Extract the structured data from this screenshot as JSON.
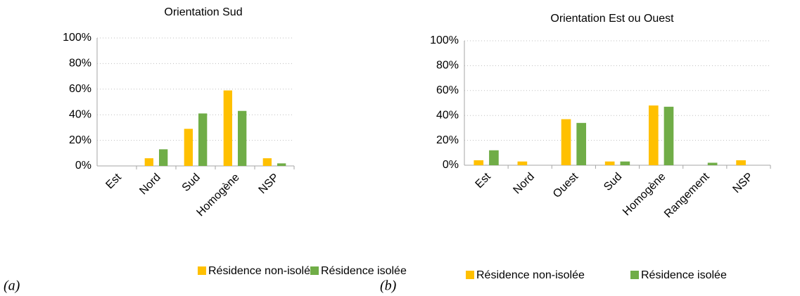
{
  "chart_data": [
    {
      "type": "bar",
      "title": "Orientation Sud",
      "label": "(a)",
      "categories": [
        "Est",
        "Nord",
        "Sud",
        "Homogène",
        "NSP"
      ],
      "series": [
        {
          "name": "Résidence non-isolée",
          "color": "#FFC000",
          "values": [
            0,
            6,
            29,
            59,
            6
          ]
        },
        {
          "name": "Résidence isolée",
          "color": "#70AD47",
          "values": [
            0,
            13,
            41,
            43,
            2
          ]
        }
      ],
      "ylim": [
        0,
        100
      ],
      "yticks": [
        {
          "value": 0,
          "label": "0%"
        },
        {
          "value": 20,
          "label": "20%"
        },
        {
          "value": 40,
          "label": "40%"
        },
        {
          "value": 60,
          "label": "60%"
        },
        {
          "value": 80,
          "label": "80%"
        },
        {
          "value": 100,
          "label": "100%"
        }
      ],
      "grid": true
    },
    {
      "type": "bar",
      "title": "Orientation Est ou Ouest",
      "label": "(b)",
      "categories": [
        "Est",
        "Nord",
        "Ouest",
        "Sud",
        "Homogène",
        "Rangement",
        "NSP"
      ],
      "series": [
        {
          "name": "Résidence non-isolée",
          "color": "#FFC000",
          "values": [
            4,
            3,
            37,
            3,
            48,
            0,
            4
          ]
        },
        {
          "name": "Résidence isolée",
          "color": "#70AD47",
          "values": [
            12,
            0,
            34,
            3,
            47,
            2,
            0
          ]
        }
      ],
      "ylim": [
        0,
        100
      ],
      "yticks": [
        {
          "value": 0,
          "label": "0%"
        },
        {
          "value": 20,
          "label": "20%"
        },
        {
          "value": 40,
          "label": "40%"
        },
        {
          "value": 60,
          "label": "60%"
        },
        {
          "value": 80,
          "label": "80%"
        },
        {
          "value": 100,
          "label": "100%"
        }
      ],
      "grid": true
    }
  ]
}
